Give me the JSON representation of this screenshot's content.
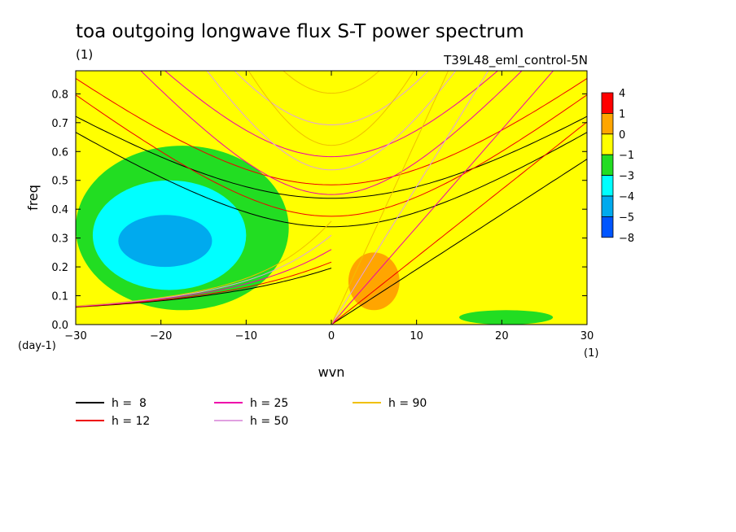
{
  "chart_data": {
    "type": "heatmap",
    "title": "toa outgoing longwave flux S-T power spectrum",
    "units_label": "(1)",
    "run_label": "T39L48_eml_control-5N",
    "xlabel": "wvn",
    "ylabel": "freq",
    "x_unit_label": "(1)",
    "y_unit_label": "(day-1)",
    "xlim": [
      -30,
      30
    ],
    "ylim": [
      0,
      0.88
    ],
    "xticks": [
      -30,
      -20,
      -10,
      0,
      10,
      20,
      30
    ],
    "yticks": [
      0.0,
      0.1,
      0.2,
      0.3,
      0.4,
      0.5,
      0.6,
      0.7,
      0.8
    ],
    "colorbar": {
      "levels": [
        "4",
        "1",
        "0",
        "-1",
        "-3",
        "-4",
        "-5",
        "-8"
      ],
      "colors": [
        "#ff0000",
        "#ffa500",
        "#ffff00",
        "#22dd22",
        "#00ffff",
        "#00aaee",
        "#0055ff"
      ]
    },
    "background_color": "#ffff00",
    "regions": [
      {
        "name": "low-power-west",
        "level_color": "#22dd22",
        "approx_extent": {
          "wvn": [
            -30,
            -5
          ],
          "freq": [
            0.05,
            0.62
          ]
        }
      },
      {
        "name": "very-low-west",
        "level_color": "#00ffff",
        "approx_extent": {
          "wvn": [
            -28,
            -10
          ],
          "freq": [
            0.12,
            0.5
          ]
        }
      },
      {
        "name": "min-west",
        "level_color": "#00aaee",
        "approx_extent": {
          "wvn": [
            -25,
            -14
          ],
          "freq": [
            0.2,
            0.38
          ]
        }
      },
      {
        "name": "elevated-east",
        "level_color": "#ffa500",
        "approx_extent": {
          "wvn": [
            2,
            8
          ],
          "freq": [
            0.05,
            0.25
          ]
        }
      },
      {
        "name": "low-power-southeast",
        "level_color": "#22dd22",
        "approx_extent": {
          "wvn": [
            15,
            26
          ],
          "freq": [
            0.0,
            0.05
          ]
        }
      }
    ],
    "series": [
      {
        "name": "h =  8",
        "color": "#000000",
        "h": 8
      },
      {
        "name": "h = 12",
        "color": "#ee0000",
        "h": 12
      },
      {
        "name": "h = 25",
        "color": "#ee00aa",
        "h": 25
      },
      {
        "name": "h = 50",
        "color": "#e0a0e0",
        "h": 50
      },
      {
        "name": "h = 90",
        "color": "#f0c000",
        "h": 90
      }
    ]
  }
}
